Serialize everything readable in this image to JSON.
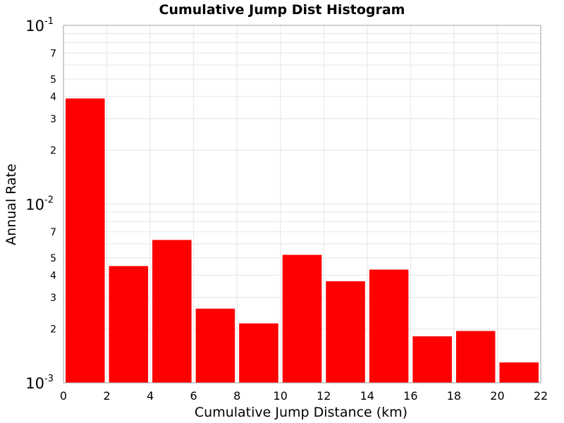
{
  "chart_data": {
    "type": "bar",
    "title": "Cumulative Jump Dist Histogram",
    "xlabel": "Cumulative Jump Distance (km)",
    "ylabel": "Annual Rate",
    "x_scale": "linear",
    "y_scale": "log",
    "xlim": [
      0,
      22
    ],
    "ylim": [
      0.001,
      0.1
    ],
    "grid": true,
    "legend": "none",
    "bar_color": "#ff0000",
    "bin_width": 2,
    "x_ticks": [
      "0",
      "2",
      "4",
      "6",
      "8",
      "10",
      "12",
      "14",
      "16",
      "18",
      "20",
      "22"
    ],
    "y_major_ticks": [
      {
        "value": 0.1,
        "base": "10",
        "exp": "-1"
      },
      {
        "value": 0.01,
        "base": "10",
        "exp": "-2"
      },
      {
        "value": 0.001,
        "base": "10",
        "exp": "-3"
      }
    ],
    "y_minor_labels": [
      "2",
      "3",
      "4",
      "5",
      "7"
    ],
    "bins": [
      {
        "start": 0,
        "end": 2,
        "value": 0.039
      },
      {
        "start": 2,
        "end": 4,
        "value": 0.0045
      },
      {
        "start": 4,
        "end": 6,
        "value": 0.0063
      },
      {
        "start": 6,
        "end": 8,
        "value": 0.0026
      },
      {
        "start": 8,
        "end": 10,
        "value": 0.00215
      },
      {
        "start": 10,
        "end": 12,
        "value": 0.0052
      },
      {
        "start": 12,
        "end": 14,
        "value": 0.0037
      },
      {
        "start": 14,
        "end": 16,
        "value": 0.0043
      },
      {
        "start": 16,
        "end": 18,
        "value": 0.00182
      },
      {
        "start": 18,
        "end": 20,
        "value": 0.00195
      },
      {
        "start": 20,
        "end": 22,
        "value": 0.0013
      }
    ]
  }
}
